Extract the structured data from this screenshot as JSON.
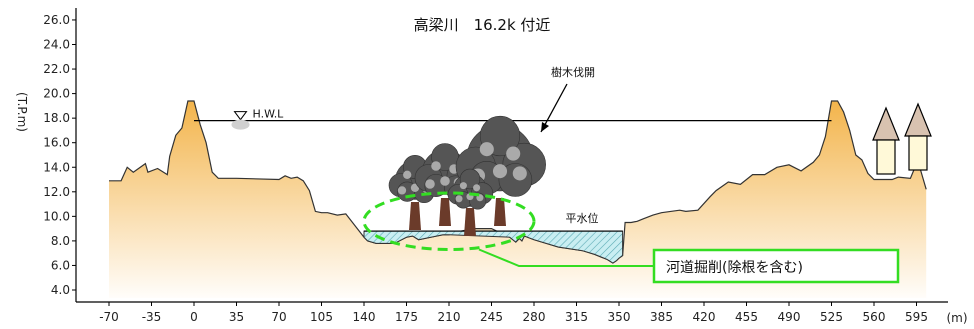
{
  "chart_data": {
    "type": "area",
    "title": "高梁川　16.2k 付近",
    "ylabel": "(T.P.m)",
    "xlabel": "(m)",
    "ylim": [
      3.5,
      26.5
    ],
    "xlim": [
      -90,
      620
    ],
    "y_ticks": [
      "4.0",
      "6.0",
      "8.0",
      "10.0",
      "12.0",
      "14.0",
      "16.0",
      "18.0",
      "20.0",
      "22.0",
      "24.0",
      "26.0"
    ],
    "x_ticks": [
      "-70",
      "-35",
      "0",
      "35",
      "70",
      "105",
      "140",
      "175",
      "210",
      "245",
      "280",
      "315",
      "350",
      "385",
      "420",
      "455",
      "490",
      "525",
      "560",
      "595"
    ],
    "ground_profile": {
      "x": [
        -70,
        -60,
        -55,
        -50,
        -40,
        -38,
        -30,
        -22,
        -20,
        -15,
        -10,
        -5,
        0,
        5,
        10,
        15,
        20,
        35,
        70,
        75,
        80,
        85,
        90,
        95,
        100,
        105,
        110,
        118,
        125,
        140,
        143,
        150,
        160,
        165,
        175,
        180,
        185,
        195,
        205,
        210,
        220,
        230,
        245,
        260,
        265,
        268,
        270,
        272,
        280,
        300,
        320,
        330,
        335,
        340,
        345,
        348,
        350,
        353,
        355,
        360,
        365,
        370,
        378,
        385,
        400,
        405,
        415,
        425,
        430,
        440,
        450,
        460,
        470,
        480,
        490,
        500,
        510,
        515,
        520,
        525,
        530,
        535,
        540,
        545,
        550,
        555,
        560,
        570,
        575,
        580,
        590,
        595,
        598,
        603
      ],
      "y": [
        12.9,
        12.9,
        14.0,
        13.6,
        14.3,
        13.6,
        13.9,
        13.4,
        14.9,
        16.6,
        17.2,
        19.4,
        19.4,
        17.5,
        16.0,
        13.6,
        13.1,
        13.1,
        13.0,
        13.3,
        13.1,
        13.2,
        12.9,
        12.1,
        10.4,
        10.3,
        10.3,
        10.1,
        10.2,
        8.3,
        8.0,
        7.8,
        7.8,
        7.8,
        8.3,
        8.4,
        8.1,
        8.3,
        8.5,
        8.5,
        8.8,
        9.0,
        9.0,
        8.3,
        7.9,
        8.2,
        8.0,
        8.4,
        8.1,
        7.5,
        7.2,
        6.9,
        6.7,
        6.5,
        6.2,
        6.4,
        6.6,
        6.8,
        9.5,
        9.5,
        9.6,
        9.8,
        10.1,
        10.3,
        10.5,
        10.4,
        10.5,
        11.6,
        12.1,
        12.8,
        12.6,
        13.4,
        13.4,
        14.0,
        14.2,
        13.7,
        14.4,
        15.0,
        16.5,
        19.4,
        19.4,
        18.5,
        17.0,
        15.0,
        14.6,
        13.5,
        13.0,
        13.0,
        13.0,
        13.2,
        13.1,
        14.3,
        13.9,
        12.2
      ]
    },
    "water_surface": {
      "x1": 120,
      "x2": 355,
      "y": 8.8
    },
    "hwl": {
      "label": "H.W.L",
      "y": 17.8,
      "x1": 0,
      "x2": 525
    },
    "low_water_label": "平水位",
    "trees_label": "樹木伐開",
    "excavation_label": "河道掘削(除根を含む)",
    "excavation_ellipse": {
      "cx": 210,
      "cy": 9.6,
      "rx": 70,
      "ry": 2.3
    }
  },
  "colors": {
    "ground_top": "#f3b44b",
    "ground_bottom": "#fffdfa",
    "water_fill": "#c9eef2",
    "water_hatch": "#5aaab4",
    "outline": "#333333",
    "excavation_green": "#33dd22",
    "tree_dark": "#555555",
    "tree_light": "#aaaaaa",
    "trunk": "#6b3b2a",
    "house_roof": "#d8c2b0",
    "house_body": "#fff9d8"
  }
}
